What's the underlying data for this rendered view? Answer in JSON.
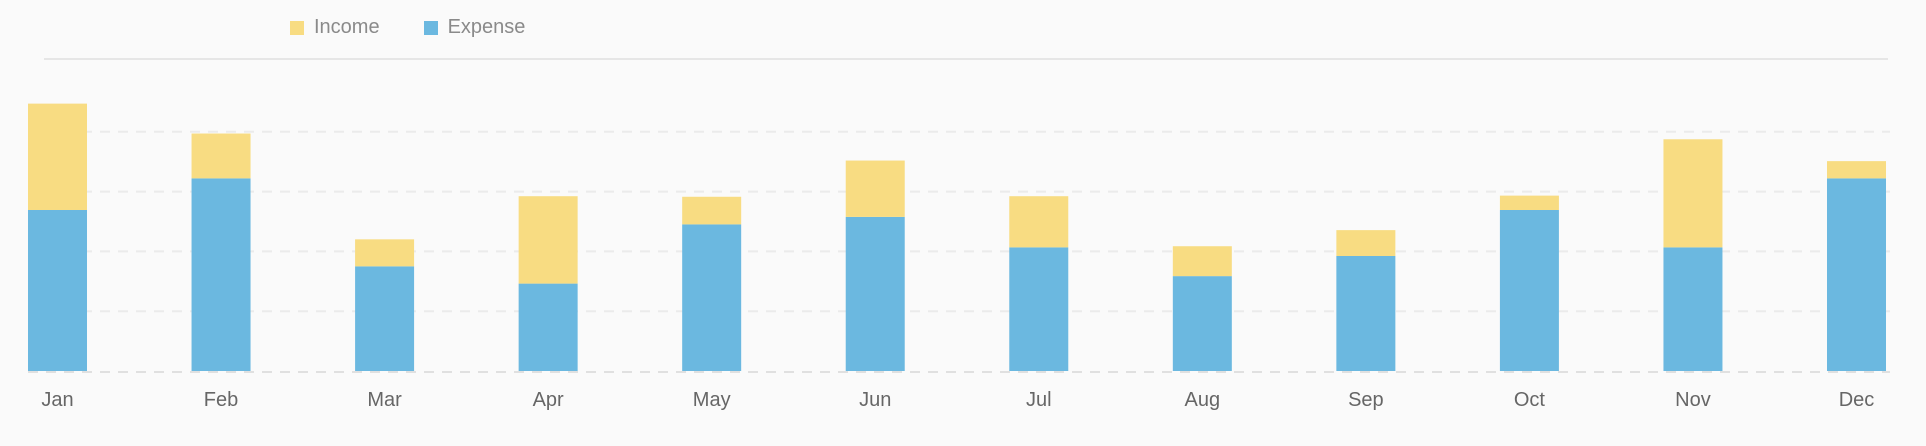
{
  "colors": {
    "income": "#f8dc82",
    "expense": "#6bb8e0",
    "grid": "#ebebeb",
    "axis": "#e0e0e0"
  },
  "legend": {
    "income_label": "Income",
    "expense_label": "Expense"
  },
  "chart_data": {
    "type": "bar",
    "stacked": true,
    "categories": [
      "Jan",
      "Feb",
      "Mar",
      "Apr",
      "May",
      "Jun",
      "Jul",
      "Aug",
      "Sep",
      "Oct",
      "Nov",
      "Dec"
    ],
    "series": [
      {
        "name": "Expense",
        "values": [
          2800,
          3350,
          1820,
          1520,
          2550,
          2680,
          2150,
          1650,
          2000,
          2800,
          2150,
          3350
        ]
      },
      {
        "name": "Income",
        "values": [
          1850,
          780,
          470,
          1520,
          480,
          980,
          890,
          520,
          450,
          250,
          1880,
          300
        ]
      }
    ],
    "ylim": [
      0,
      5200
    ],
    "grid": true,
    "legend_position": "top-left",
    "xlabel": "",
    "ylabel": ""
  }
}
